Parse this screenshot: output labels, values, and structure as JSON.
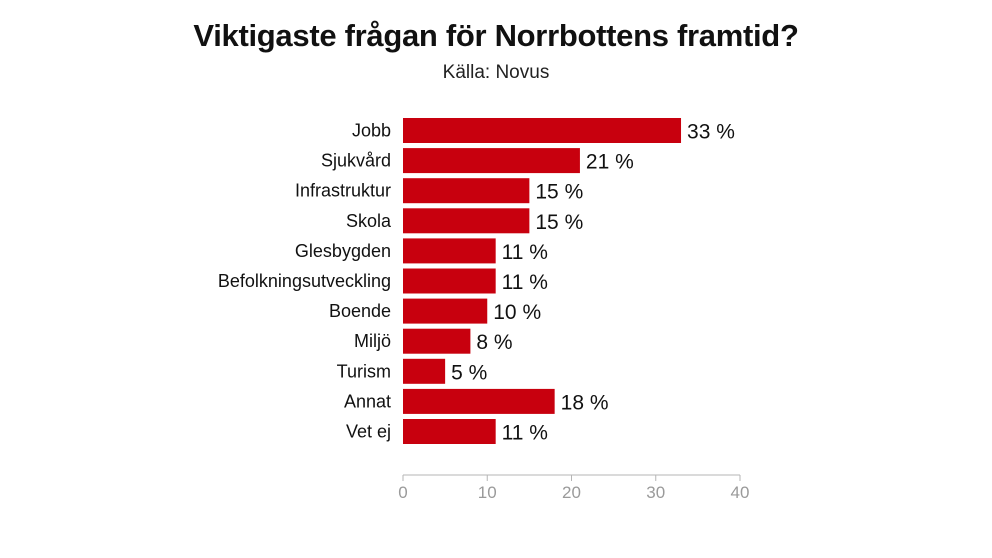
{
  "chart_data": {
    "type": "bar",
    "orientation": "horizontal",
    "title": "Viktigaste frågan för Norrbottens framtid?",
    "subtitle": "Källa: Novus",
    "categories": [
      "Jobb",
      "Sjukvård",
      "Infrastruktur",
      "Skola",
      "Glesbygden",
      "Befolkningsutveckling",
      "Boende",
      "Miljö",
      "Turism",
      "Annat",
      "Vet ej"
    ],
    "values": [
      33,
      21,
      15,
      15,
      11,
      11,
      10,
      8,
      5,
      18,
      11
    ],
    "value_labels": [
      "33 %",
      "21 %",
      "15 %",
      "15 %",
      "11 %",
      "11 %",
      "10 %",
      "8 %",
      "5 %",
      "18 %",
      "11 %"
    ],
    "xlim": [
      0,
      40
    ],
    "xticks": [
      0,
      10,
      20,
      30,
      40
    ],
    "xtick_labels": [
      "0",
      "10",
      "20",
      "30",
      "40"
    ],
    "bar_color": "#c8000e",
    "grid": false,
    "legend": "none"
  }
}
